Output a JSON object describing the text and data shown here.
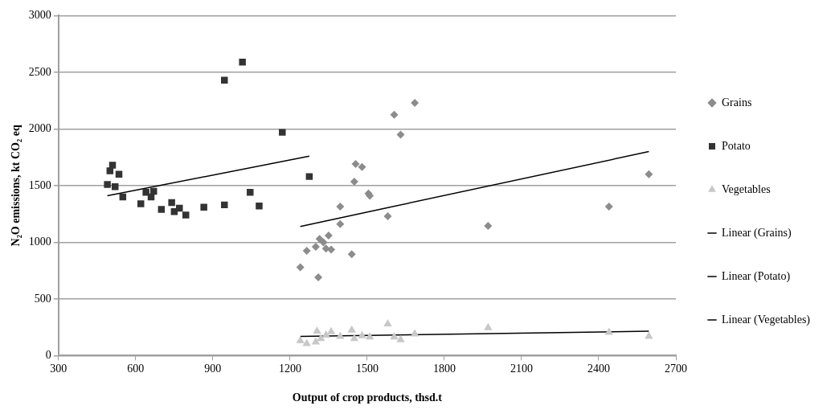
{
  "chart_data": {
    "type": "scatter",
    "xlabel": "Output of crop products, thsd.t",
    "ylabel": "N₂O emissions, kt CO₂ eq",
    "xlim": [
      300,
      2700
    ],
    "xticks": [
      300,
      600,
      900,
      1200,
      1500,
      1800,
      2100,
      2400,
      2700
    ],
    "ylim": [
      0,
      3000
    ],
    "yticks": [
      0,
      500,
      1000,
      1500,
      2000,
      2500,
      3000
    ],
    "grid": "y",
    "legend": "right",
    "series": [
      {
        "name": "Grains",
        "marker": "diamond",
        "color": "#8c8c8c",
        "x": [
          1240,
          1265,
          1300,
          1310,
          1315,
          1330,
          1340,
          1350,
          1360,
          1395,
          1395,
          1440,
          1450,
          1455,
          1480,
          1505,
          1510,
          1580,
          1605,
          1630,
          1685,
          1970,
          2440,
          2595
        ],
        "values": [
          780,
          925,
          960,
          690,
          1030,
          1000,
          945,
          1060,
          935,
          1315,
          1160,
          895,
          1535,
          1690,
          1665,
          1430,
          1410,
          1230,
          2125,
          1950,
          2230,
          1145,
          1315,
          1600
        ]
      },
      {
        "name": "Potato",
        "marker": "square",
        "color": "#333333",
        "x": [
          490,
          500,
          510,
          520,
          535,
          550,
          620,
          640,
          660,
          670,
          700,
          740,
          750,
          770,
          795,
          865,
          945,
          945,
          1015,
          1045,
          1080,
          1170,
          1275
        ],
        "values": [
          1510,
          1630,
          1680,
          1490,
          1600,
          1400,
          1340,
          1440,
          1400,
          1450,
          1290,
          1350,
          1270,
          1300,
          1240,
          1310,
          1330,
          2430,
          2590,
          1440,
          1320,
          1970,
          1580
        ]
      },
      {
        "name": "Vegetables",
        "marker": "triangle",
        "color": "#c8c8c8",
        "x": [
          1240,
          1265,
          1300,
          1305,
          1320,
          1340,
          1360,
          1395,
          1440,
          1450,
          1480,
          1510,
          1580,
          1605,
          1630,
          1685,
          1970,
          2440,
          2595
        ],
        "values": [
          130,
          105,
          120,
          215,
          150,
          180,
          210,
          170,
          225,
          150,
          175,
          165,
          280,
          165,
          140,
          190,
          245,
          205,
          170
        ]
      },
      {
        "name": "Linear (Grains)",
        "type": "line",
        "marker": "none",
        "color": "#000000",
        "x": [
          1240,
          2595
        ],
        "values": [
          1140,
          1800
        ]
      },
      {
        "name": "Linear (Potato)",
        "type": "line",
        "marker": "none",
        "color": "#000000",
        "x": [
          490,
          1275
        ],
        "values": [
          1410,
          1760
        ]
      },
      {
        "name": "Linear (Vegetables)",
        "type": "line",
        "marker": "none",
        "color": "#000000",
        "x": [
          1240,
          2595
        ],
        "values": [
          170,
          215
        ]
      }
    ]
  }
}
